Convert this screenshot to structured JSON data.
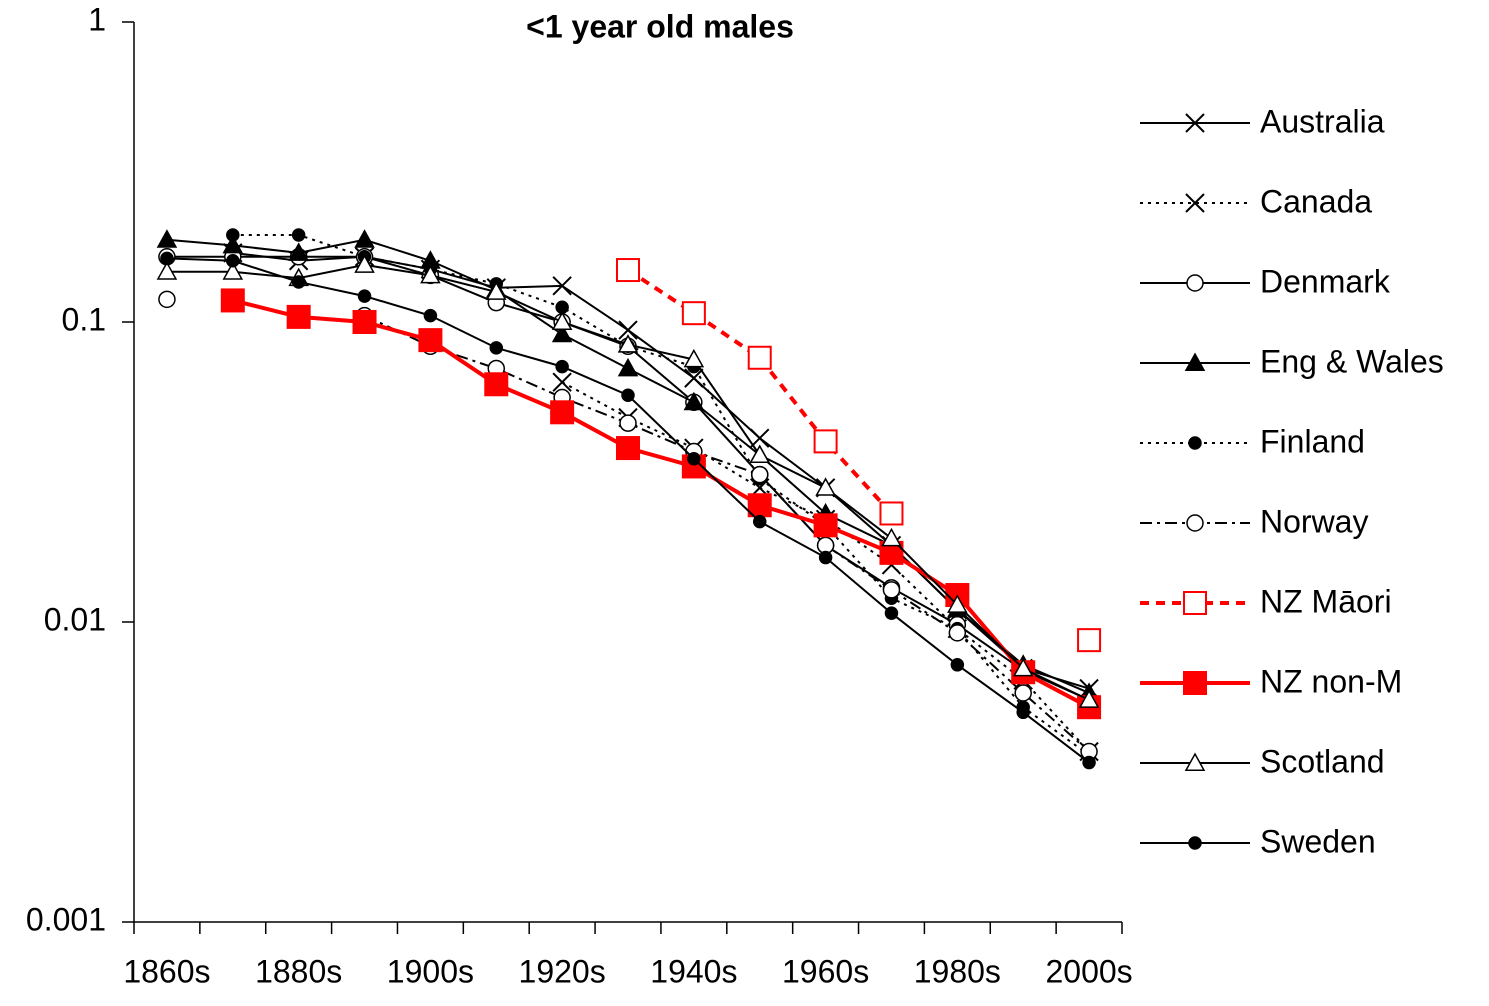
{
  "chart_data": {
    "type": "line",
    "title": "<1 year old males",
    "categories": [
      "1860s",
      null,
      "1880s",
      null,
      "1900s",
      null,
      "1920s",
      null,
      "1940s",
      null,
      "1960s",
      null,
      "1980s",
      null,
      "2000s"
    ],
    "log_scale": true,
    "ylim": [
      0.001,
      1
    ],
    "yticks": [
      0.001,
      0.01,
      0.1,
      1
    ],
    "grid": false,
    "legend": "right",
    "series": [
      {
        "name": "Australia",
        "color": "#000000",
        "line_style": "solid",
        "marker": "x",
        "marker_fill": "none",
        "values": [
          null,
          0.17,
          0.16,
          0.165,
          0.15,
          0.13,
          0.132,
          0.094,
          0.065,
          0.041,
          0.028,
          0.018,
          0.011,
          0.007,
          0.006
        ]
      },
      {
        "name": "Canada",
        "color": "#000000",
        "line_style": "dotted",
        "marker": "x",
        "marker_fill": "none",
        "values": [
          null,
          null,
          null,
          null,
          null,
          null,
          0.063,
          0.048,
          0.038,
          0.028,
          0.022,
          0.0155,
          0.0095,
          0.0064,
          0.0037
        ]
      },
      {
        "name": "Denmark",
        "color": "#000000",
        "line_style": "solid",
        "marker": "circle",
        "marker_fill": "none",
        "values": [
          0.165,
          0.165,
          0.165,
          0.165,
          0.143,
          0.116,
          0.1,
          0.083,
          0.054,
          0.031,
          0.018,
          0.013,
          0.0098,
          0.0069,
          0.0055
        ]
      },
      {
        "name": "Eng & Wales",
        "color": "#000000",
        "line_style": "solid",
        "marker": "triangle",
        "marker_fill": "filled",
        "values": [
          0.188,
          0.18,
          0.17,
          0.188,
          0.16,
          0.128,
          0.091,
          0.07,
          0.054,
          0.036,
          0.023,
          0.018,
          0.011,
          0.0072,
          0.0058
        ]
      },
      {
        "name": "Finland",
        "color": "#000000",
        "line_style": "dotted",
        "marker": "circle",
        "marker_fill": "filled",
        "values": [
          null,
          0.195,
          0.195,
          0.165,
          0.15,
          0.134,
          0.112,
          0.083,
          0.071,
          0.03,
          0.021,
          0.012,
          0.0095,
          0.0052,
          0.0036
        ]
      },
      {
        "name": "Norway",
        "color": "#000000",
        "line_style": "dashdot",
        "marker": "circle",
        "marker_fill": "none",
        "values": [
          0.119,
          null,
          null,
          0.105,
          0.083,
          0.07,
          0.056,
          0.046,
          0.037,
          0.031,
          0.018,
          0.0128,
          0.0092,
          0.0058,
          0.0037
        ]
      },
      {
        "name": "NZ Māori",
        "color": "#ff0000",
        "line_style": "dashed",
        "marker": "square",
        "marker_fill": "none",
        "values": [
          null,
          null,
          null,
          null,
          null,
          null,
          null,
          0.149,
          0.107,
          0.076,
          0.04,
          0.023,
          null,
          null,
          0.0087
        ]
      },
      {
        "name": "NZ non-M",
        "color": "#ff0000",
        "line_style": "solid",
        "marker": "square",
        "marker_fill": "filled",
        "values": [
          null,
          0.118,
          0.104,
          0.1,
          0.087,
          0.062,
          0.05,
          0.038,
          0.033,
          0.0245,
          0.021,
          0.017,
          0.0123,
          0.0068,
          0.0052
        ]
      },
      {
        "name": "Scotland",
        "color": "#000000",
        "line_style": "solid",
        "marker": "triangle",
        "marker_fill": "none",
        "values": [
          0.147,
          0.147,
          0.14,
          0.155,
          0.143,
          0.126,
          0.1,
          0.084,
          0.075,
          0.036,
          0.028,
          0.019,
          0.0114,
          0.007,
          0.0055
        ]
      },
      {
        "name": "Sweden",
        "color": "#000000",
        "line_style": "solid",
        "marker": "circle",
        "marker_fill": "filled",
        "values": [
          0.163,
          0.16,
          0.136,
          0.122,
          0.105,
          0.082,
          0.071,
          0.057,
          0.035,
          0.0216,
          0.0164,
          0.0107,
          0.0072,
          0.005,
          0.0034
        ]
      }
    ]
  }
}
